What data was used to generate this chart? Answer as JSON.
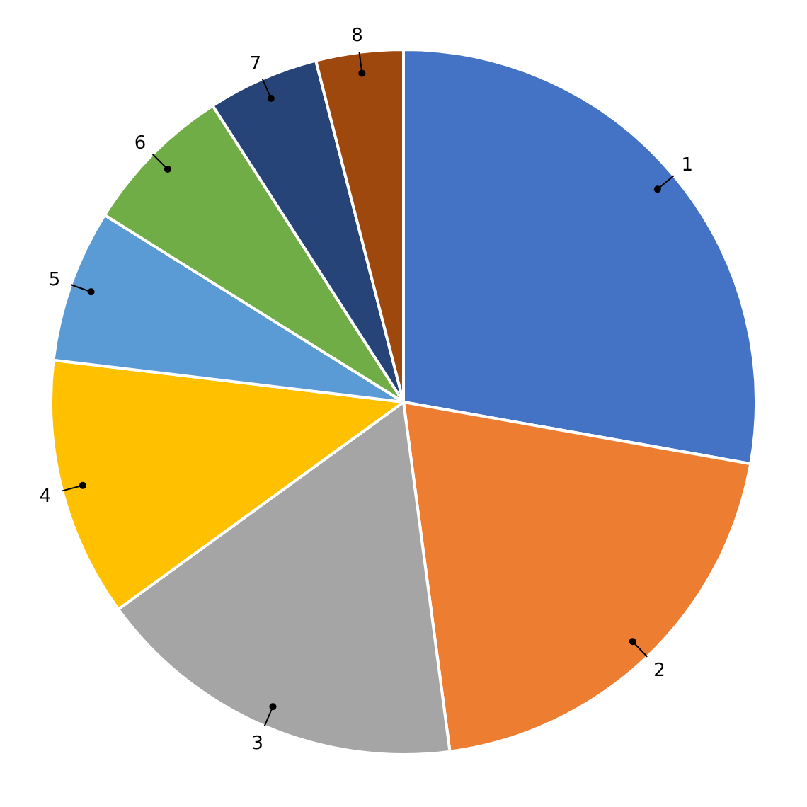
{
  "chart_data": {
    "type": "pie",
    "categories": [
      "1",
      "2",
      "3",
      "4",
      "5",
      "6",
      "7",
      "8"
    ],
    "values": [
      27.8,
      20.1,
      17.1,
      11.9,
      7.0,
      7.0,
      5.1,
      4.0
    ],
    "colors": [
      "#4472c4",
      "#ed7d31",
      "#a5a5a5",
      "#ffc000",
      "#5b9bd5",
      "#70ad47",
      "#264478",
      "#9e480e"
    ]
  }
}
